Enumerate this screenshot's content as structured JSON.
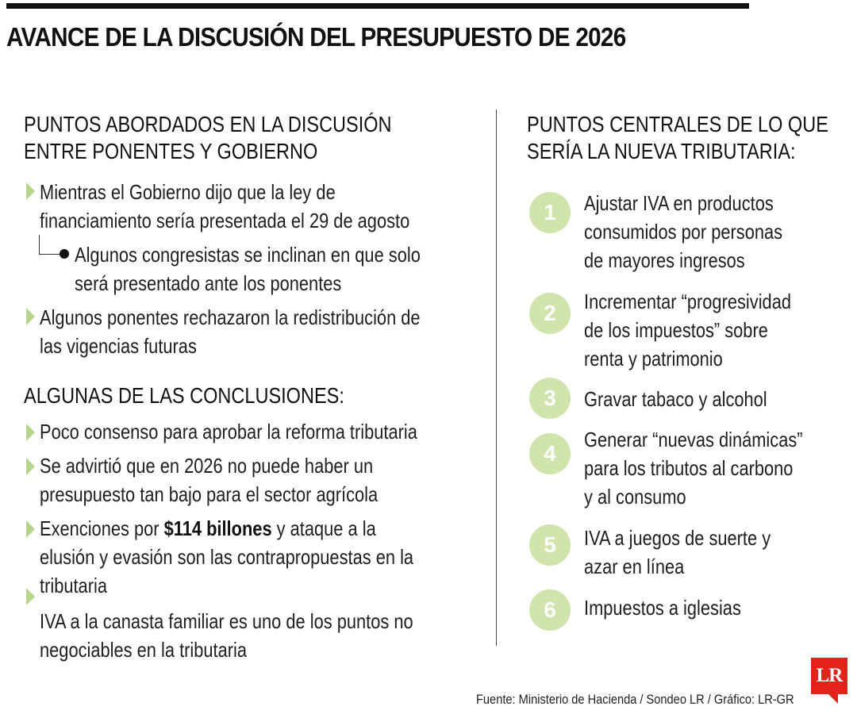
{
  "title": "AVANCE DE LA DISCUSIÓN DEL PRESUPUESTO DE 2026",
  "left": {
    "heading1": [
      "PUNTOS ABORDADOS EN LA DISCUSIÓN",
      "ENTRE PONENTES Y GOBIERNO"
    ],
    "items1": [
      {
        "lines": [
          "Mientras el Gobierno dijo que la ley de",
          "financiamiento sería presentada el 29 de agosto"
        ]
      },
      {
        "sub_lines": [
          "Algunos congresistas se inclinan en que solo",
          "será presentado ante los ponentes"
        ]
      },
      {
        "lines": [
          "Algunos ponentes rechazaron la redistribución de",
          "las vigencias futuras"
        ]
      }
    ],
    "heading2": "ALGUNAS DE LAS CONCLUSIONES:",
    "items2": [
      {
        "lines": [
          "Poco consenso para aprobar la reforma tributaria"
        ]
      },
      {
        "lines": [
          "Se advirtió que en 2026 no puede haber un",
          "presupuesto tan bajo para el sector agrícola"
        ]
      },
      {
        "pre": "Exenciones por ",
        "bold": "$114 billones",
        "post": " y ataque a la",
        "lines": [
          "elusión y evasión son las contrapropuestas en la",
          "tributaria"
        ]
      },
      {
        "lines": [
          "IVA a la canasta familiar es uno de los puntos no",
          "negociables en la tributaria"
        ]
      }
    ]
  },
  "right": {
    "heading": [
      "PUNTOS CENTRALES DE LO QUE",
      "SERÍA LA NUEVA TRIBUTARIA:"
    ],
    "items": [
      {
        "num": "1",
        "lines": [
          "Ajustar IVA en productos",
          "consumidos por personas",
          "de mayores ingresos"
        ]
      },
      {
        "num": "2",
        "lines": [
          "Incrementar “progresividad",
          "de los impuestos” sobre",
          "renta y patrimonio"
        ]
      },
      {
        "num": "3",
        "lines": [
          "Gravar tabaco y alcohol"
        ]
      },
      {
        "num": "4",
        "lines": [
          "Generar “nuevas dinámicas”",
          "para los tributos al carbono",
          "y al consumo"
        ]
      },
      {
        "num": "5",
        "lines": [
          "IVA a juegos de suerte y",
          "azar en línea"
        ]
      },
      {
        "num": "6",
        "lines": [
          "Impuestos a iglesias"
        ]
      }
    ]
  },
  "source": "Fuente: Ministerio de Hacienda / Sondeo LR / Gráfico: LR-GR",
  "logo": "LR",
  "colors": {
    "accent_green": "#b5d58a",
    "circle_green": "#cfe5ab",
    "logo_red": "#e2231a"
  }
}
